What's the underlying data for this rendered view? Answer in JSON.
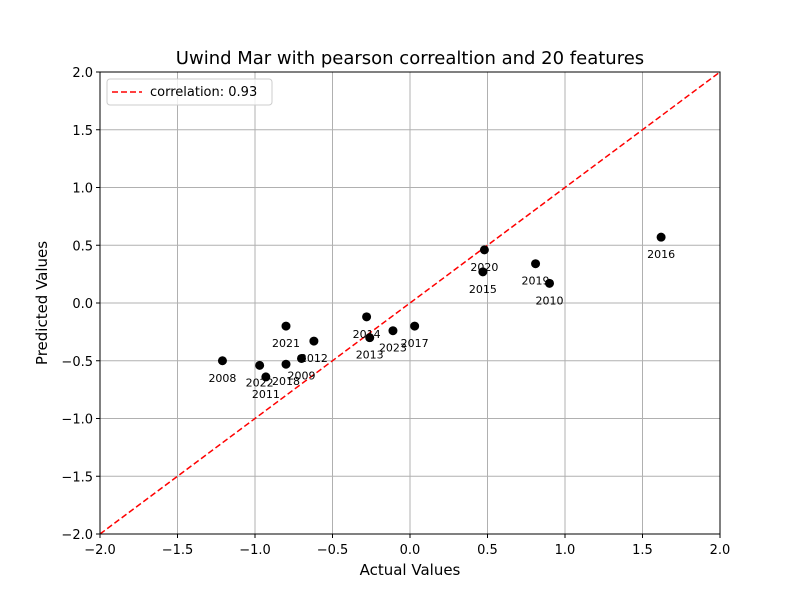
{
  "chart_data": {
    "type": "scatter",
    "title": "Uwind Mar with pearson correaltion and 20 features",
    "xlabel": "Actual Values",
    "ylabel": "Predicted Values",
    "xlim": [
      -2.0,
      2.0
    ],
    "ylim": [
      -2.0,
      2.0
    ],
    "xticks": [
      "−2.0",
      "−1.5",
      "−1.0",
      "−0.5",
      "0.0",
      "0.5",
      "1.0",
      "1.5",
      "2.0"
    ],
    "yticks": [
      "−2.0",
      "−1.5",
      "−1.0",
      "−0.5",
      "0.0",
      "0.5",
      "1.0",
      "1.5",
      "2.0"
    ],
    "grid": true,
    "legend_position": "upper-left",
    "reference_line": {
      "label": "correlation: 0.93",
      "x": [
        -2.0,
        2.0
      ],
      "y": [
        -2.0,
        2.0
      ],
      "color": "#ff0000",
      "style": "dashed"
    },
    "point_color": "#000000",
    "points": [
      {
        "label": "2008",
        "x": -1.21,
        "y": -0.5
      },
      {
        "label": "2009",
        "x": -0.7,
        "y": -0.48
      },
      {
        "label": "2010",
        "x": 0.9,
        "y": 0.17
      },
      {
        "label": "2011",
        "x": -0.93,
        "y": -0.64
      },
      {
        "label": "2012",
        "x": -0.62,
        "y": -0.33
      },
      {
        "label": "2013",
        "x": -0.26,
        "y": -0.3
      },
      {
        "label": "2014",
        "x": -0.28,
        "y": -0.12
      },
      {
        "label": "2015",
        "x": 0.47,
        "y": 0.27
      },
      {
        "label": "2016",
        "x": 1.62,
        "y": 0.57
      },
      {
        "label": "2017",
        "x": 0.03,
        "y": -0.2
      },
      {
        "label": "2018",
        "x": -0.8,
        "y": -0.53
      },
      {
        "label": "2019",
        "x": 0.81,
        "y": 0.34
      },
      {
        "label": "2020",
        "x": 0.48,
        "y": 0.46
      },
      {
        "label": "2021",
        "x": -0.8,
        "y": -0.2
      },
      {
        "label": "2022",
        "x": -0.97,
        "y": -0.54
      },
      {
        "label": "2023",
        "x": -0.11,
        "y": -0.24
      }
    ]
  }
}
